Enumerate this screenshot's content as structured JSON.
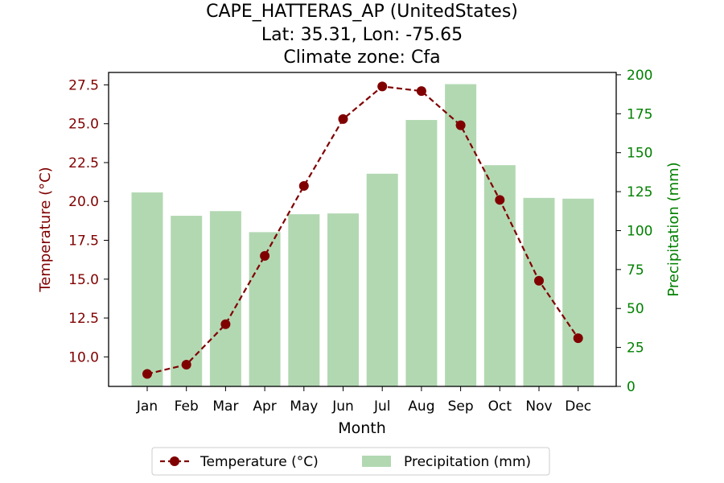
{
  "title": {
    "line1": "CAPE_HATTERAS_AP (UnitedStates)",
    "line2": "Lat: 35.31, Lon: -75.65",
    "line3": "Climate zone: Cfa"
  },
  "colors": {
    "temperature": "#800000",
    "precipitation": "#008000",
    "bar_fill": "#b2d8b2"
  },
  "chart_data": {
    "type": "bar+line",
    "title": "CAPE_HATTERAS_AP (UnitedStates)\nLat: 35.31, Lon: -75.65\nClimate zone: Cfa",
    "xlabel": "Month",
    "ylabel_left": "Temperature (°C)",
    "ylabel_right": "Precipitation (mm)",
    "categories": [
      "Jan",
      "Feb",
      "Mar",
      "Apr",
      "May",
      "Jun",
      "Jul",
      "Aug",
      "Sep",
      "Oct",
      "Nov",
      "Dec"
    ],
    "y_left_ticks": [
      "10.0",
      "12.5",
      "15.0",
      "17.5",
      "20.0",
      "22.5",
      "25.0",
      "27.5"
    ],
    "y_right_ticks": [
      "0",
      "25",
      "50",
      "75",
      "100",
      "125",
      "150",
      "175",
      "200"
    ],
    "y_left_lim": [
      8.1,
      28.3
    ],
    "y_right_lim": [
      0,
      201.5
    ],
    "series": [
      {
        "name": "Temperature (°C)",
        "axis": "left",
        "kind": "line",
        "style": "dashed-with-circle-markers",
        "values": [
          8.9,
          9.5,
          12.1,
          16.5,
          21.0,
          25.3,
          27.4,
          27.1,
          24.9,
          20.1,
          14.9,
          11.2
        ]
      },
      {
        "name": "Precipitation (mm)",
        "axis": "right",
        "kind": "bar",
        "values": [
          124.5,
          109.5,
          112.5,
          99.0,
          110.5,
          111.0,
          136.5,
          171.0,
          194.0,
          142.0,
          121.0,
          120.5
        ]
      }
    ],
    "legend": {
      "position": "bottom-center",
      "entries": [
        "Temperature (°C)",
        "Precipitation (mm)"
      ]
    },
    "grid": false
  }
}
